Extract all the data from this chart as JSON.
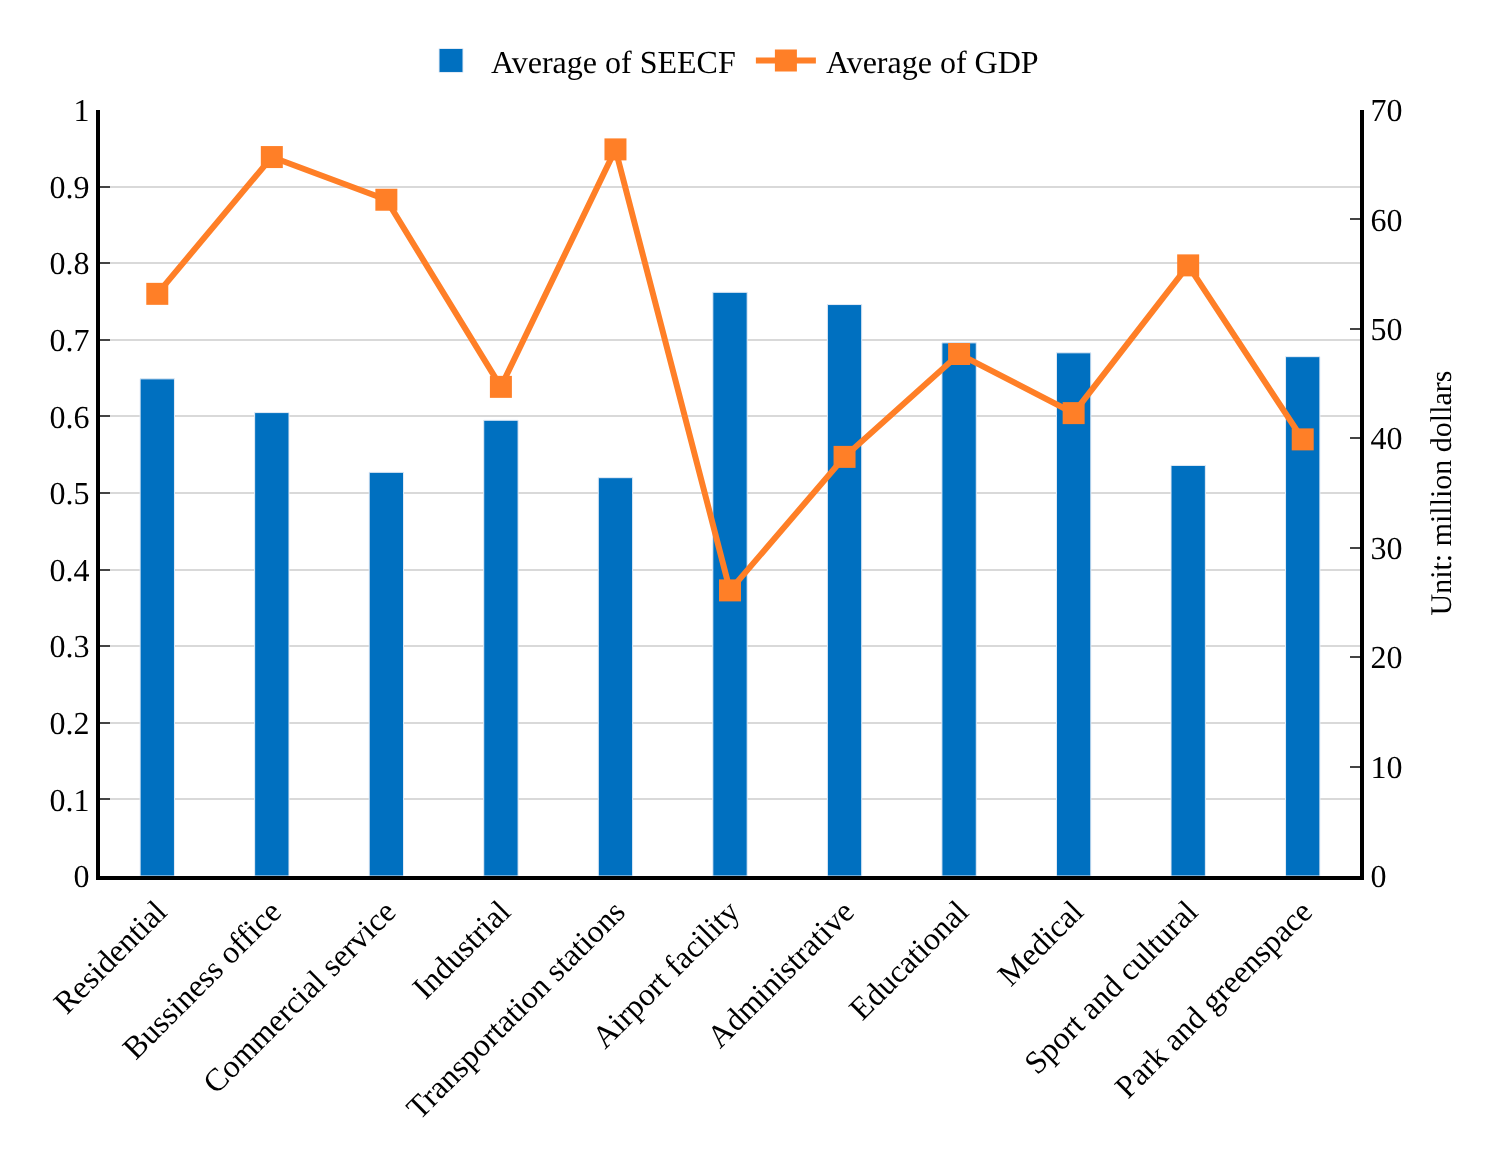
{
  "chart_data": {
    "type": "bar",
    "categories": [
      "Residential",
      "Bussiness office",
      "Commercial service",
      "Industrial",
      "Transportation stations",
      "Airport facility",
      "Administrative",
      "Educational",
      "Medical",
      "Sport and cultural",
      "Park and greenspace"
    ],
    "series": [
      {
        "name": "Average of SEECF",
        "color": "#0070c0",
        "values": [
          0.649,
          0.605,
          0.527,
          0.595,
          0.52,
          0.762,
          0.746,
          0.696,
          0.683,
          0.536,
          0.678
        ]
      },
      {
        "name": "Average of GDP",
        "type": "line",
        "axis": "y2",
        "color": "#ff7f27",
        "marker": "square",
        "values": [
          53.2,
          65.7,
          61.8,
          44.7,
          66.4,
          26.1,
          38.3,
          47.7,
          42.3,
          55.8,
          39.9
        ]
      }
    ],
    "y2label": "Unit: million dollars",
    "ylim": [
      0,
      1
    ],
    "yticks": [
      0,
      0.1,
      0.2,
      0.3,
      0.4,
      0.5,
      0.6,
      0.7,
      0.8,
      0.9,
      1
    ],
    "y2lim": [
      0,
      70
    ],
    "y2ticks": [
      0,
      10,
      20,
      30,
      40,
      50,
      60,
      70
    ],
    "grid": "y",
    "legend": "top"
  }
}
